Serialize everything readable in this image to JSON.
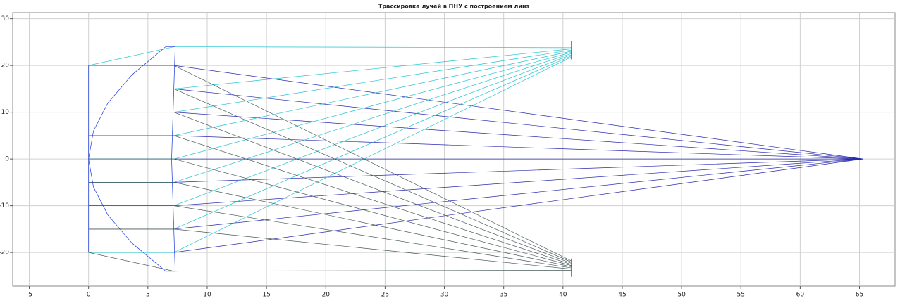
{
  "chart_data": {
    "type": "line",
    "title": "Трассировка лучей в ПНУ с построением линз",
    "xlim": [
      -6.4,
      68
    ],
    "ylim": [
      -27.2,
      31.3
    ],
    "xticks": [
      -5,
      0,
      5,
      10,
      15,
      20,
      25,
      30,
      35,
      40,
      45,
      50,
      55,
      60,
      65
    ],
    "yticks": [
      -20,
      -10,
      0,
      10,
      20,
      30
    ],
    "grid": true,
    "series": [
      {
        "color": "#2a2ab0",
        "x": [
          0,
          7.2,
          65.3
        ],
        "y": [
          -20,
          -20,
          0
        ]
      },
      {
        "color": "#2a2ab0",
        "x": [
          0,
          7.2,
          65.3
        ],
        "y": [
          -15,
          -15,
          0
        ]
      },
      {
        "color": "#2a2ab0",
        "x": [
          0,
          7.2,
          65.3
        ],
        "y": [
          -10,
          -10,
          0
        ]
      },
      {
        "color": "#2a2ab0",
        "x": [
          0,
          7.2,
          65.3
        ],
        "y": [
          -5,
          -5,
          0
        ]
      },
      {
        "color": "#2a2ab0",
        "x": [
          0,
          7.2,
          65.3
        ],
        "y": [
          0,
          0,
          0
        ]
      },
      {
        "color": "#2a2ab0",
        "x": [
          0,
          7.2,
          65.3
        ],
        "y": [
          5,
          5,
          0
        ]
      },
      {
        "color": "#2a2ab0",
        "x": [
          0,
          7.2,
          65.3
        ],
        "y": [
          10,
          10,
          0
        ]
      },
      {
        "color": "#2a2ab0",
        "x": [
          0,
          7.2,
          65.3
        ],
        "y": [
          15,
          15,
          0
        ]
      },
      {
        "color": "#2a2ab0",
        "x": [
          0,
          7.2,
          65.3
        ],
        "y": [
          20,
          20,
          0
        ]
      },
      {
        "color": "#22c3cf",
        "x": [
          0,
          7.2,
          40.7
        ],
        "y": [
          -20,
          -20,
          21.8
        ]
      },
      {
        "color": "#22c3cf",
        "x": [
          0,
          7.2,
          40.7
        ],
        "y": [
          -15,
          -15,
          22.05
        ]
      },
      {
        "color": "#22c3cf",
        "x": [
          0,
          7.2,
          40.7
        ],
        "y": [
          -10,
          -10,
          22.3
        ]
      },
      {
        "color": "#22c3cf",
        "x": [
          0,
          7.2,
          40.7
        ],
        "y": [
          -5,
          -5,
          22.55
        ]
      },
      {
        "color": "#22c3cf",
        "x": [
          0,
          7.2,
          40.7
        ],
        "y": [
          0,
          0,
          22.8
        ]
      },
      {
        "color": "#22c3cf",
        "x": [
          0,
          7.2,
          40.7
        ],
        "y": [
          5,
          5,
          23.05
        ]
      },
      {
        "color": "#22c3cf",
        "x": [
          0,
          7.2,
          40.7
        ],
        "y": [
          10,
          10,
          23.3
        ]
      },
      {
        "color": "#22c3cf",
        "x": [
          0,
          7.2,
          40.7
        ],
        "y": [
          15,
          15,
          23.55
        ]
      },
      {
        "color": "#22c3cf",
        "x": [
          0,
          7.2,
          40.7
        ],
        "y": [
          20,
          24,
          23.8
        ]
      },
      {
        "color": "#4a5a5a",
        "x": [
          0,
          7.2,
          40.7
        ],
        "y": [
          -20,
          -24,
          -23.8
        ]
      },
      {
        "color": "#4a5a5a",
        "x": [
          0,
          7.2,
          40.7
        ],
        "y": [
          -15,
          -15,
          -23.55
        ]
      },
      {
        "color": "#4a5a5a",
        "x": [
          0,
          7.2,
          40.7
        ],
        "y": [
          -10,
          -10,
          -23.3
        ]
      },
      {
        "color": "#4a5a5a",
        "x": [
          0,
          7.2,
          40.7
        ],
        "y": [
          -5,
          -5,
          -23.05
        ]
      },
      {
        "color": "#4a5a5a",
        "x": [
          0,
          7.2,
          40.7
        ],
        "y": [
          0,
          0,
          -22.8
        ]
      },
      {
        "color": "#4a5a5a",
        "x": [
          0,
          7.2,
          40.7
        ],
        "y": [
          5,
          5,
          -22.55
        ]
      },
      {
        "color": "#4a5a5a",
        "x": [
          0,
          7.2,
          40.7
        ],
        "y": [
          10,
          10,
          -22.3
        ]
      },
      {
        "color": "#4a5a5a",
        "x": [
          0,
          7.2,
          40.7
        ],
        "y": [
          15,
          15,
          -22.05
        ]
      },
      {
        "color": "#4a5a5a",
        "x": [
          0,
          7.2,
          40.7
        ],
        "y": [
          20,
          20,
          -21.8
        ]
      },
      {
        "color": "#1a3adb",
        "width": 3,
        "x": [
          6.5,
          3.66,
          1.63,
          0.41,
          0,
          0.41,
          1.63,
          3.66,
          6.5,
          7.3,
          7.0,
          7.3,
          6.5
        ],
        "y": [
          -24,
          -18,
          -12,
          -6,
          0,
          6,
          12,
          18,
          24,
          24,
          0,
          -24,
          -24
        ]
      },
      {
        "color": "#1a3adb",
        "width": 3,
        "x": [
          0,
          0
        ],
        "y": [
          -20,
          20
        ]
      },
      {
        "color": "#e01010",
        "width": 2,
        "x": [
          40.7,
          40.7
        ],
        "y": [
          21.3,
          25.2
        ]
      },
      {
        "color": "#e01010",
        "width": 2,
        "x": [
          40.7,
          40.7
        ],
        "y": [
          -21.3,
          -25.2
        ]
      },
      {
        "color": "#e01010",
        "width": 2,
        "x": [
          65.3,
          65.3
        ],
        "y": [
          -0.4,
          0.4
        ]
      }
    ]
  }
}
